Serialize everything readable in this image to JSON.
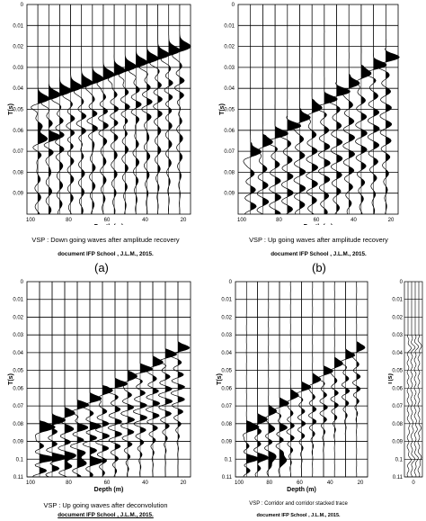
{
  "figure": {
    "panels": [
      {
        "id": "a",
        "tick_labels_y": [
          "0",
          "0.01",
          "0.02",
          "0.03",
          "0.04",
          "0.05",
          "0.06",
          "0.07",
          "0.08",
          "0.09"
        ],
        "tick_labels_x": [
          "100",
          "80",
          "60",
          "40",
          "20"
        ],
        "y_axis_label": "T(s)",
        "x_axis_label": "Depth (m)",
        "caption": "VSP : Down going waves after amplitude recovery",
        "source": "document IFP School , J.L.M., 2015.",
        "label": "(a)"
      },
      {
        "id": "b",
        "tick_labels_y": [
          "0",
          "0.01",
          "0.02",
          "0.03",
          "0.04",
          "0.05",
          "0.06",
          "0.07",
          "0.08",
          "0.09"
        ],
        "tick_labels_x": [
          "100",
          "80",
          "60",
          "40",
          "20"
        ],
        "y_axis_label": "T(s)",
        "x_axis_label": "Depth (m)",
        "caption": "VSP : Up going waves after amplitude recovery",
        "source": "document IFP School , J.L.M., 2015.",
        "label": "(b)"
      },
      {
        "id": "c",
        "tick_labels_y": [
          "0",
          "0.01",
          "0.02",
          "0.03",
          "0.04",
          "0.05",
          "0.06",
          "0.07",
          "0.08",
          "0.09",
          "0.1",
          "0.11"
        ],
        "tick_labels_x": [
          "100",
          "80",
          "60",
          "40",
          "20"
        ],
        "y_axis_label": "T(s)",
        "x_axis_label": "Depth (m)",
        "caption": "VSP : Up going waves after deconvolution",
        "source": "document IFP School , J.L.M., 2015."
      },
      {
        "id": "d",
        "tick_labels_y": [
          "0",
          "0.01",
          "0.02",
          "0.03",
          "0.04",
          "0.05",
          "0.06",
          "0.07",
          "0.08",
          "0.09",
          "0.1",
          "0.11"
        ],
        "tick_labels_x": [
          "100",
          "80",
          "60",
          "40",
          "20"
        ],
        "y_axis_label": "T(s)",
        "x_axis_label": "Depth (m)",
        "caption": "VSP : Corridor and corridor stacked trace",
        "source": "document IFP School , J.L.M., 2015."
      },
      {
        "id": "e",
        "tick_labels_y": [
          "0",
          "0.01",
          "0.02",
          "0.03",
          "0.04",
          "0.05",
          "0.06",
          "0.07",
          "0.08",
          "0.09",
          "0.1",
          "0.11"
        ],
        "tick_labels_x": [
          "0"
        ],
        "y_axis_label": "T(s)"
      }
    ]
  }
}
